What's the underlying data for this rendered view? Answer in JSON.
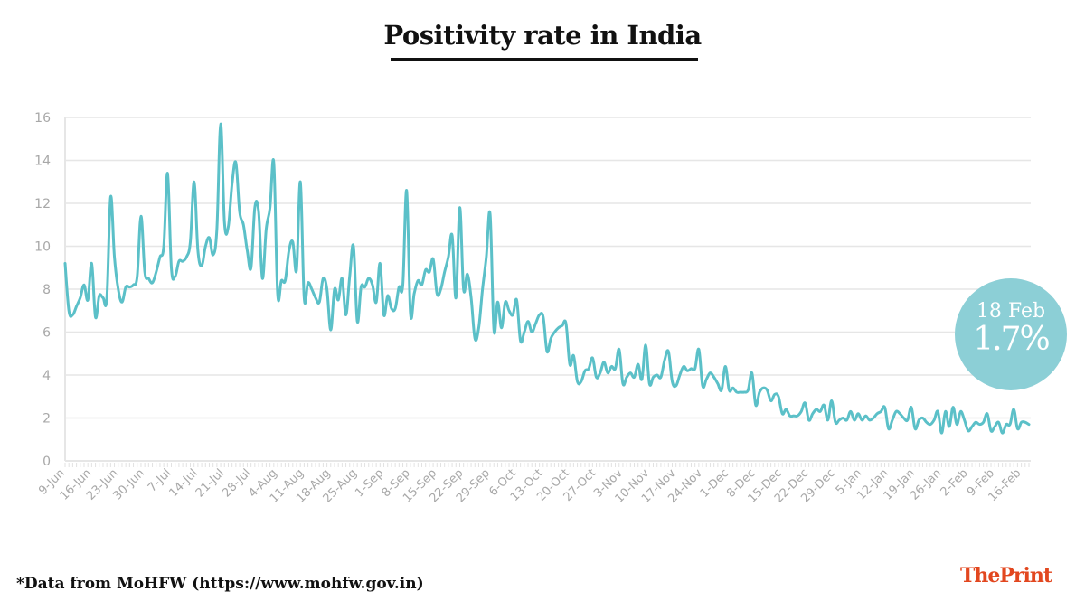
{
  "title": "Positivity rate in India",
  "footnote": "*Data from MoHFW (https://www.mohfw.gov.in)",
  "logo": "ThePrint",
  "badge": {
    "date": "18 Feb",
    "value": "1.7%",
    "color": "#8ccfd6"
  },
  "colors": {
    "line": "#5bc0c8",
    "grid": "#e6e6e6",
    "tick_label": "#a8a8a8",
    "logo": "#e2471f"
  },
  "chart_data": {
    "type": "line",
    "title": "Positivity rate in India",
    "xlabel": "",
    "ylabel": "",
    "ylim": [
      0,
      16
    ],
    "yticks": [
      0,
      2,
      4,
      6,
      8,
      10,
      12,
      14,
      16
    ],
    "grid": true,
    "x_start": "9-Jun",
    "x_end": "18-Feb",
    "x_step": "1 day",
    "xtick_labels": [
      "9-Jun",
      "16-Jun",
      "23-Jun",
      "30-Jun",
      "7-Jul",
      "14-Jul",
      "21-Jul",
      "28-Jul",
      "4-Aug",
      "11-Aug",
      "18-Aug",
      "25-Aug",
      "1-Sep",
      "8-Sep",
      "15-Sep",
      "22-Sep",
      "29-Sep",
      "6-Oct",
      "13-Oct",
      "20-Oct",
      "27-Oct",
      "3-Nov",
      "10-Nov",
      "17-Nov",
      "24-Nov",
      "1-Dec",
      "8-Dec",
      "15-Dec",
      "22-Dec",
      "29-Dec",
      "5-Jan",
      "12-Jan",
      "19-Jan",
      "26-Jan",
      "2-Feb",
      "9-Feb",
      "16-Feb"
    ],
    "values": [
      9.2,
      7.0,
      6.8,
      7.2,
      7.6,
      8.2,
      7.5,
      9.2,
      6.7,
      7.7,
      7.6,
      7.6,
      12.3,
      9.5,
      8.0,
      7.4,
      8.1,
      8.1,
      8.2,
      8.6,
      11.4,
      8.8,
      8.5,
      8.3,
      8.8,
      9.5,
      10.0,
      13.4,
      9.0,
      8.6,
      9.3,
      9.3,
      9.5,
      10.2,
      13.0,
      9.8,
      9.1,
      10.0,
      10.4,
      9.6,
      10.8,
      15.7,
      11.1,
      10.9,
      12.9,
      13.9,
      11.6,
      11.0,
      9.8,
      9.0,
      11.8,
      11.6,
      8.5,
      10.8,
      11.8,
      13.9,
      7.8,
      8.4,
      8.4,
      9.8,
      10.2,
      8.9,
      13.0,
      7.6,
      8.3,
      8.0,
      7.6,
      7.4,
      8.5,
      8.0,
      6.1,
      8.0,
      7.5,
      8.5,
      6.8,
      8.6,
      10.0,
      6.5,
      8.1,
      8.1,
      8.5,
      8.2,
      7.4,
      9.2,
      6.8,
      7.7,
      7.1,
      7.1,
      8.1,
      8.2,
      12.6,
      6.9,
      7.8,
      8.4,
      8.2,
      8.9,
      8.8,
      9.4,
      7.8,
      8.0,
      8.8,
      9.5,
      10.5,
      7.6,
      11.8,
      8.0,
      8.7,
      7.6,
      5.7,
      6.2,
      8.0,
      9.5,
      11.5,
      6.1,
      7.4,
      6.2,
      7.4,
      7.0,
      6.8,
      7.5,
      5.6,
      6.0,
      6.5,
      6.0,
      6.4,
      6.8,
      6.7,
      5.1,
      5.7,
      6.0,
      6.2,
      6.3,
      6.4,
      4.5,
      4.9,
      3.7,
      3.7,
      4.2,
      4.3,
      4.8,
      3.9,
      4.1,
      4.6,
      4.1,
      4.4,
      4.3,
      5.2,
      3.6,
      3.9,
      4.1,
      3.9,
      4.5,
      3.8,
      5.4,
      3.6,
      3.9,
      4.0,
      3.9,
      4.7,
      5.1,
      3.7,
      3.5,
      4.0,
      4.4,
      4.2,
      4.3,
      4.3,
      5.2,
      3.5,
      3.8,
      4.1,
      3.9,
      3.6,
      3.3,
      4.4,
      3.3,
      3.4,
      3.2,
      3.2,
      3.2,
      3.3,
      4.1,
      2.6,
      3.2,
      3.4,
      3.3,
      2.8,
      3.1,
      3.0,
      2.2,
      2.4,
      2.1,
      2.1,
      2.1,
      2.3,
      2.7,
      1.9,
      2.2,
      2.4,
      2.3,
      2.6,
      1.9,
      2.8,
      1.8,
      1.9,
      2.0,
      1.9,
      2.3,
      1.9,
      2.2,
      1.9,
      2.1,
      1.9,
      2.0,
      2.2,
      2.3,
      2.5,
      1.5,
      1.9,
      2.3,
      2.2,
      2.0,
      1.9,
      2.5,
      1.5,
      1.9,
      2.0,
      1.8,
      1.7,
      1.9,
      2.3,
      1.3,
      2.3,
      1.6,
      2.5,
      1.7,
      2.3,
      1.9,
      1.4,
      1.6,
      1.8,
      1.7,
      1.8,
      2.2,
      1.4,
      1.6,
      1.8,
      1.3,
      1.7,
      1.7,
      2.4,
      1.5,
      1.8,
      1.8,
      1.7
    ],
    "annotation": {
      "label": "18 Feb",
      "value": "1.7%"
    }
  }
}
